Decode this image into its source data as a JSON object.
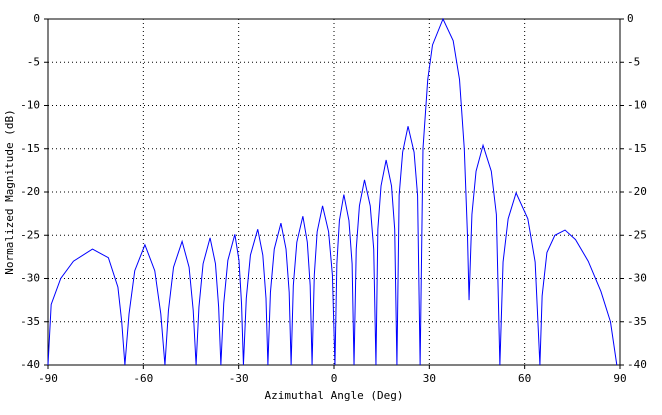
{
  "chart_data": {
    "type": "line",
    "xlabel": "Azimuthal Angle (Deg)",
    "ylabel": "Normalized Magnitude (dB)",
    "color": "#0000ff",
    "grid": true,
    "xlim": [
      -90,
      90
    ],
    "ylim": [
      -40,
      0
    ],
    "xticks": [
      -90,
      -60,
      -30,
      0,
      30,
      60,
      90
    ],
    "yticks": [
      0,
      -5,
      -10,
      -15,
      -20,
      -25,
      -30,
      -35,
      -40
    ],
    "x": [
      -90,
      -89,
      -86,
      -82,
      -76,
      -71,
      -68,
      -66.8,
      -65.8,
      -64.5,
      -62.7,
      -59.5,
      -56.4,
      -54.5,
      -53.2,
      -52.1,
      -50.5,
      -47.8,
      -45.6,
      -44.3,
      -43.4,
      -42.5,
      -41.2,
      -39,
      -37.3,
      -36.3,
      -35.6,
      -34.7,
      -33.4,
      -31.2,
      -29.9,
      -29.1,
      -28.5,
      -27.6,
      -26.3,
      -24,
      -22.4,
      -21.4,
      -20.8,
      -20,
      -18.8,
      -16.7,
      -15.1,
      -14.1,
      -13.5,
      -12.8,
      -11.7,
      -9.8,
      -8.4,
      -7.5,
      -6.9,
      -6.2,
      -5.3,
      -3.6,
      -1.7,
      -0.5,
      0.3,
      0.9,
      1.7,
      3.1,
      4.7,
      5.7,
      6.3,
      7,
      8,
      9.6,
      11.4,
      12.5,
      13.2,
      13.8,
      14.8,
      16.4,
      18.1,
      19.1,
      19.8,
      20.5,
      21.6,
      23.3,
      25.2,
      26.3,
      27.1,
      28,
      29.5,
      31,
      34.3,
      37.5,
      39.5,
      41,
      42,
      42.5,
      43.4,
      44.7,
      46.9,
      49.5,
      51.1,
      52.2,
      53.2,
      54.8,
      57.3,
      61,
      63.3,
      64.8,
      65.5,
      67,
      69.5,
      72.7,
      76,
      80,
      84,
      87,
      89
    ],
    "values": [
      -40,
      -33,
      -30,
      -28,
      -26.6,
      -27.6,
      -31,
      -35,
      -40,
      -34.1,
      -29.1,
      -26.1,
      -29.1,
      -34.1,
      -40,
      -33.7,
      -28.7,
      -25.7,
      -28.7,
      -33.7,
      -40,
      -33.3,
      -28.3,
      -25.3,
      -28.3,
      -33.3,
      -40,
      -32.9,
      -27.9,
      -24.9,
      -27.9,
      -32.9,
      -40,
      -32.3,
      -27.3,
      -24.3,
      -27.3,
      -32.3,
      -40,
      -31.6,
      -26.6,
      -23.6,
      -26.6,
      -31.6,
      -40,
      -30.8,
      -25.8,
      -22.8,
      -25.8,
      -30.8,
      -40,
      -29.6,
      -24.6,
      -21.6,
      -24.6,
      -29.6,
      -40,
      -28.3,
      -23.3,
      -20.3,
      -23.3,
      -28.3,
      -40,
      -26.6,
      -21.6,
      -18.6,
      -21.6,
      -26.6,
      -40,
      -24.3,
      -19.3,
      -16.3,
      -19.3,
      -24.3,
      -40,
      -20.4,
      -15.4,
      -12.4,
      -15.4,
      -20.4,
      -40,
      -15,
      -7,
      -3,
      0,
      -2.5,
      -7,
      -15,
      -25,
      -32.5,
      -22.6,
      -17.6,
      -14.6,
      -17.6,
      -22.6,
      -40,
      -28.1,
      -23.1,
      -20.1,
      -23.1,
      -28.1,
      -40,
      -32,
      -27,
      -25,
      -24.4,
      -25.5,
      -28,
      -31.5,
      -35,
      -40
    ]
  }
}
